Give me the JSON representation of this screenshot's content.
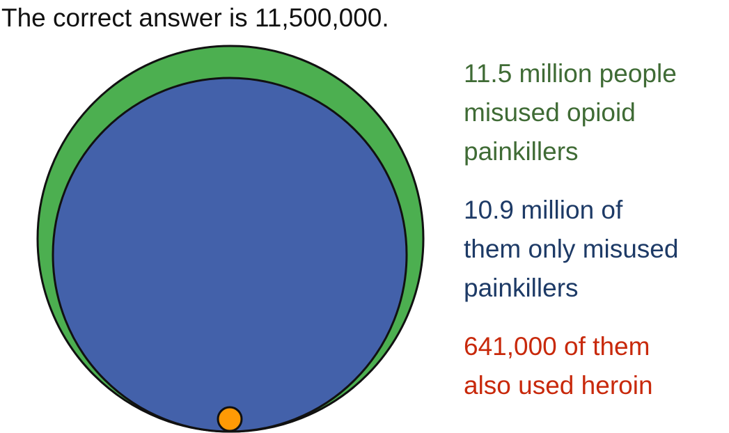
{
  "headline": "The correct answer is 11,500,000.",
  "colors": {
    "total_fill": "#4caf50",
    "only_painkillers_fill": "#4361aa",
    "heroin_fill": "#ff9a05",
    "outline": "#111111",
    "total_text": "#3f6b35",
    "only_painkillers_text": "#1d3a66",
    "heroin_text": "#c8290b"
  },
  "groups": {
    "total": {
      "label": "11.5 million people\nmisused opioid\npainkillers",
      "value_millions": 11.5
    },
    "only_painkillers": {
      "label": "10.9 million of\nthem only misused\npainkillers",
      "value_millions": 10.9
    },
    "heroin": {
      "label": "641,000 of them\nalso used heroin",
      "value_millions": 0.641
    }
  }
}
